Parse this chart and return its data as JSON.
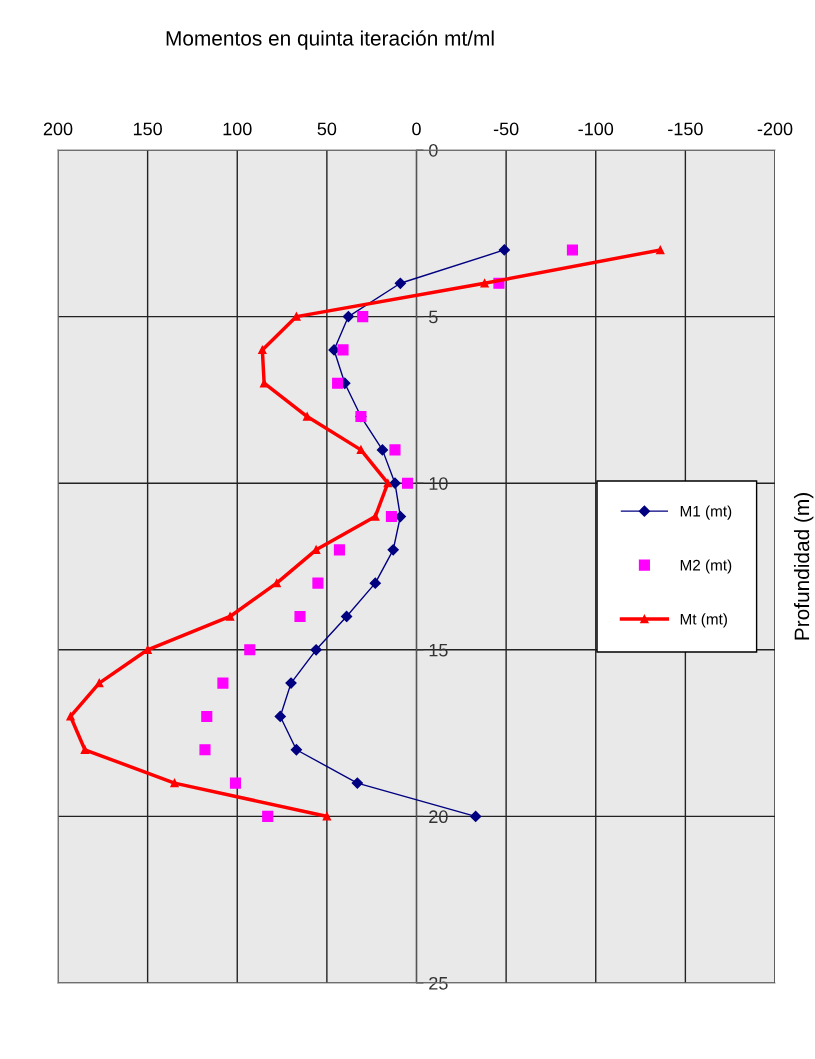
{
  "chart_data": {
    "type": "line",
    "title": "Momentos en quinta iteración mt/ml",
    "ylabel": "Profundidad (m)",
    "orientation": "horizontal",
    "x": [
      3,
      4,
      5,
      6,
      7,
      8,
      9,
      10,
      11,
      12,
      13,
      14,
      15,
      16,
      17,
      18,
      19,
      20
    ],
    "series": [
      {
        "name": "M1 (mt)",
        "type": "line",
        "color": "#000080",
        "marker": "diamond",
        "line_style": "solid",
        "values": [
          -49,
          9,
          38,
          46,
          40,
          31,
          19,
          12,
          9,
          13,
          23,
          39,
          56,
          70,
          76,
          67,
          33,
          -33
        ]
      },
      {
        "name": "M2 (mt)",
        "type": "scatter",
        "color": "#ff00ff",
        "marker": "square",
        "values": [
          -87,
          -46,
          30,
          41,
          44,
          31,
          12,
          5,
          14,
          43,
          55,
          65,
          93,
          108,
          117,
          118,
          101,
          83
        ]
      },
      {
        "name": "Mt (mt)",
        "type": "line",
        "color": "#ff0000",
        "marker": "triangle",
        "line_style": "solid",
        "values": [
          -136,
          -38,
          67,
          86,
          85,
          61,
          31,
          16,
          23,
          56,
          78,
          104,
          150,
          177,
          193,
          185,
          135,
          50
        ]
      }
    ],
    "xlim": [
      200,
      -200
    ],
    "xticks": [
      200,
      150,
      100,
      50,
      0,
      -50,
      -100,
      -150,
      -200
    ],
    "ylim": [
      25,
      0
    ],
    "yticks": [
      0,
      5,
      10,
      15,
      20,
      25
    ],
    "grid": true,
    "legend": "center right"
  }
}
